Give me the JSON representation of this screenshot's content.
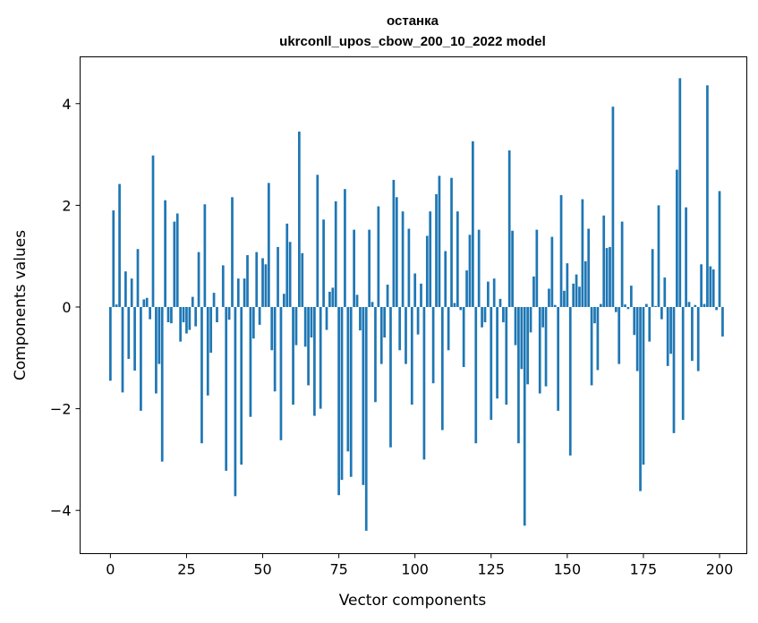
{
  "chart_data": {
    "type": "bar",
    "title_line1": "останка",
    "title_line2": "ukrconll_upos_cbow_200_10_2022 model",
    "xlabel": "Vector components",
    "ylabel": "Components values",
    "xlim": [
      -9.95,
      208.95
    ],
    "ylim": [
      -4.85,
      4.92
    ],
    "xticks": [
      0,
      25,
      50,
      75,
      100,
      125,
      150,
      175,
      200
    ],
    "yticks": [
      -4,
      -2,
      0,
      2,
      4
    ],
    "ytick_labels": [
      "−4",
      "−2",
      "0",
      "2",
      "4"
    ],
    "bar_color": "#1f77b4",
    "grid": false,
    "values": [
      -1.45,
      1.9,
      0.05,
      2.42,
      -1.68,
      0.7,
      -1.02,
      0.56,
      -1.25,
      1.14,
      -2.04,
      0.15,
      0.18,
      -0.24,
      2.98,
      -1.7,
      -1.12,
      -3.04,
      2.1,
      -0.3,
      -0.32,
      1.68,
      1.84,
      -0.68,
      -0.3,
      -0.52,
      -0.45,
      0.2,
      -0.38,
      1.08,
      -2.68,
      2.02,
      -1.74,
      -0.9,
      0.28,
      -0.3,
      0.0,
      0.82,
      -3.22,
      -0.25,
      2.16,
      -3.72,
      0.56,
      -3.1,
      0.56,
      1.02,
      -2.16,
      -0.62,
      1.08,
      -0.35,
      0.96,
      0.84,
      2.44,
      -0.85,
      -1.66,
      1.18,
      -2.62,
      0.26,
      1.64,
      1.28,
      -1.92,
      -0.75,
      3.45,
      1.06,
      -0.78,
      -1.54,
      -0.6,
      -2.14,
      2.6,
      -2.0,
      1.72,
      -0.45,
      0.3,
      0.38,
      2.08,
      -3.7,
      -3.4,
      2.32,
      -2.84,
      -3.34,
      1.52,
      0.24,
      -0.46,
      -3.5,
      -4.4,
      1.52,
      0.1,
      -1.87,
      1.98,
      -1.12,
      -0.6,
      0.44,
      -2.76,
      2.5,
      2.16,
      -0.85,
      1.88,
      -1.12,
      1.54,
      -1.92,
      0.66,
      -0.54,
      0.46,
      -3.0,
      1.4,
      1.88,
      -1.5,
      2.22,
      2.58,
      -2.42,
      1.1,
      -0.85,
      2.54,
      0.08,
      1.88,
      -0.06,
      -1.18,
      0.72,
      1.42,
      3.26,
      -2.68,
      1.52,
      -0.4,
      -0.3,
      0.5,
      -2.22,
      0.56,
      -1.8,
      0.16,
      -0.3,
      -1.92,
      3.08,
      1.5,
      -0.75,
      -2.68,
      -1.22,
      -4.3,
      -1.52,
      -0.5,
      0.6,
      1.52,
      -1.7,
      -0.4,
      -1.56,
      0.36,
      1.38,
      0.04,
      -2.04,
      2.2,
      0.32,
      0.86,
      -2.92,
      0.46,
      0.64,
      0.4,
      2.12,
      0.9,
      1.54,
      -1.54,
      -0.32,
      -1.24,
      0.06,
      1.8,
      1.16,
      1.18,
      3.94,
      -0.1,
      -1.12,
      1.68,
      0.05,
      -0.04,
      0.42,
      -0.55,
      -1.26,
      -3.62,
      -3.1,
      0.06,
      -0.68,
      1.14,
      0.02,
      2.0,
      -0.24,
      0.58,
      -1.16,
      -0.92,
      -2.48,
      2.7,
      4.5,
      -2.22,
      1.96,
      0.1,
      -1.06,
      0.04,
      -1.26,
      0.84,
      0.06,
      4.36,
      0.8,
      0.74,
      -0.06,
      2.28,
      -0.58
    ]
  }
}
